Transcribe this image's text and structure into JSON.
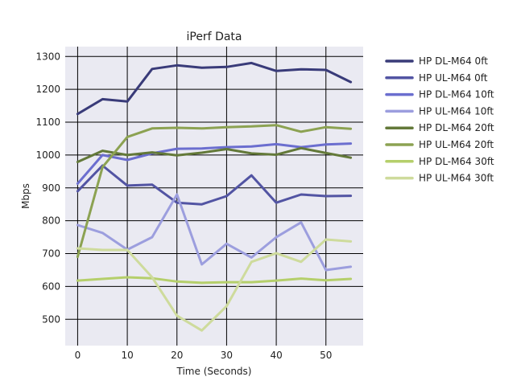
{
  "chart_data": {
    "type": "line",
    "title": "iPerf Data",
    "xlabel": "Time (Seconds)",
    "ylabel": "Mbps",
    "xlim": [
      -2.5,
      57.5
    ],
    "ylim": [
      420,
      1330
    ],
    "x_ticks": [
      0,
      10,
      20,
      30,
      40,
      50
    ],
    "y_ticks": [
      500,
      600,
      700,
      800,
      900,
      1000,
      1100,
      1200,
      1300
    ],
    "grid": true,
    "legend_position": "right",
    "x": [
      0,
      5,
      10,
      15,
      20,
      25,
      30,
      35,
      40,
      45,
      50,
      55
    ],
    "series": [
      {
        "name": "HP DL-M64 0ft",
        "color": "#393b79",
        "values": [
          1125,
          1170,
          1163,
          1262,
          1273,
          1266,
          1268,
          1280,
          1256,
          1261,
          1259,
          1222
        ]
      },
      {
        "name": "HP UL-M64 0ft",
        "color": "#5254a3",
        "values": [
          890,
          968,
          907,
          910,
          855,
          850,
          875,
          938,
          855,
          880,
          875,
          876
        ]
      },
      {
        "name": "HP DL-M64 10ft",
        "color": "#6b6ecf",
        "values": [
          913,
          1000,
          985,
          1005,
          1019,
          1020,
          1024,
          1026,
          1033,
          1024,
          1032,
          1035
        ]
      },
      {
        "name": "HP UL-M64 10ft",
        "color": "#9c9ede",
        "values": [
          787,
          763,
          712,
          750,
          880,
          667,
          730,
          688,
          750,
          795,
          650,
          660
        ]
      },
      {
        "name": "HP DL-M64 20ft",
        "color": "#637939",
        "values": [
          979,
          1013,
          1000,
          1008,
          999,
          1007,
          1018,
          1005,
          1001,
          1021,
          1006,
          992
        ]
      },
      {
        "name": "HP UL-M64 20ft",
        "color": "#8ca252",
        "values": [
          690,
          963,
          1055,
          1081,
          1083,
          1081,
          1085,
          1087,
          1091,
          1071,
          1085,
          1080
        ]
      },
      {
        "name": "HP DL-M64 30ft",
        "color": "#b5cf6b",
        "values": [
          618,
          623,
          628,
          625,
          615,
          611,
          613,
          613,
          618,
          624,
          619,
          623
        ]
      },
      {
        "name": "HP UL-M64 30ft",
        "color": "#cedb9c",
        "values": [
          716,
          711,
          711,
          628,
          511,
          466,
          540,
          675,
          701,
          675,
          743,
          737
        ]
      }
    ]
  }
}
